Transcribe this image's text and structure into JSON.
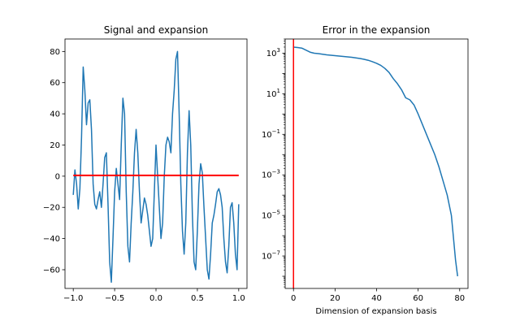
{
  "chart_data": [
    {
      "type": "line",
      "title": "Signal and expansion",
      "xlabel": "",
      "ylabel": "",
      "xlim": [
        -1.1,
        1.1
      ],
      "ylim": [
        -72,
        88
      ],
      "xticks": [
        -1.0,
        -0.5,
        0.0,
        0.5,
        1.0
      ],
      "xtick_labels": [
        "−1.0",
        "−0.5",
        "0.0",
        "0.5",
        "1.0"
      ],
      "yticks": [
        -60,
        -40,
        -20,
        0,
        20,
        40,
        60,
        80
      ],
      "ytick_labels": [
        "−60",
        "−40",
        "−20",
        "0",
        "20",
        "40",
        "60",
        "80"
      ],
      "grid": false,
      "series": [
        {
          "color": "#1f77b4",
          "x": [
            -1.0,
            -0.98,
            -0.96,
            -0.94,
            -0.92,
            -0.9,
            -0.88,
            -0.86,
            -0.84,
            -0.82,
            -0.8,
            -0.78,
            -0.76,
            -0.74,
            -0.72,
            -0.7,
            -0.68,
            -0.66,
            -0.64,
            -0.62,
            -0.6,
            -0.58,
            -0.56,
            -0.54,
            -0.52,
            -0.5,
            -0.48,
            -0.46,
            -0.44,
            -0.42,
            -0.4,
            -0.38,
            -0.36,
            -0.34,
            -0.32,
            -0.3,
            -0.28,
            -0.26,
            -0.24,
            -0.22,
            -0.2,
            -0.18,
            -0.16,
            -0.14,
            -0.12,
            -0.1,
            -0.08,
            -0.06,
            -0.04,
            -0.02,
            0.0,
            0.02,
            0.04,
            0.06,
            0.08,
            0.1,
            0.12,
            0.14,
            0.16,
            0.18,
            0.2,
            0.22,
            0.24,
            0.26,
            0.28,
            0.3,
            0.32,
            0.34,
            0.36,
            0.38,
            0.4,
            0.42,
            0.44,
            0.46,
            0.48,
            0.5,
            0.52,
            0.54,
            0.56,
            0.58,
            0.6,
            0.62,
            0.64,
            0.66,
            0.68,
            0.7,
            0.72,
            0.74,
            0.76,
            0.78,
            0.8,
            0.82,
            0.84,
            0.86,
            0.88,
            0.9,
            0.92,
            0.94,
            0.96,
            0.98,
            1.0
          ],
          "y": [
            -12,
            4,
            -5,
            -21,
            -8,
            25,
            70,
            55,
            33,
            47,
            49,
            30,
            -5,
            -18,
            -21,
            -15,
            -10,
            -20,
            -5,
            12,
            15,
            -18,
            -55,
            -68,
            -40,
            -10,
            5,
            -5,
            -15,
            20,
            50,
            40,
            -10,
            -45,
            -55,
            -30,
            -10,
            15,
            30,
            15,
            -10,
            -30,
            -22,
            -14,
            -18,
            -25,
            -35,
            -45,
            -40,
            -10,
            20,
            0,
            -20,
            -40,
            -30,
            0,
            20,
            25,
            22,
            15,
            40,
            55,
            75,
            80,
            40,
            -5,
            -35,
            -50,
            -30,
            15,
            42,
            20,
            -25,
            -55,
            -60,
            -35,
            -5,
            8,
            2,
            -20,
            -40,
            -60,
            -66,
            -50,
            -30,
            -25,
            -18,
            -10,
            -8,
            -12,
            -20,
            -40,
            -55,
            -62,
            -45,
            -20,
            -17,
            -30,
            -50,
            -60,
            -18
          ],
          "name": ""
        },
        {
          "color": "#ff0000",
          "x": [
            -1.0,
            1.0
          ],
          "y": [
            0.5,
            0.5
          ],
          "name": ""
        }
      ]
    },
    {
      "type": "line",
      "title": "Error in the expansion",
      "xlabel": "Dimension of expansion basis",
      "ylabel": "",
      "yscale": "log",
      "xlim": [
        -4,
        84
      ],
      "ylim_log10": [
        -8.6,
        3.7
      ],
      "xticks": [
        0,
        20,
        40,
        60,
        80
      ],
      "xtick_labels": [
        "0",
        "20",
        "40",
        "60",
        "80"
      ],
      "yticks_exp": [
        3,
        1,
        -1,
        -3,
        -5,
        -7
      ],
      "grid": false,
      "vline": {
        "x": 0,
        "color": "#ff0000"
      },
      "series": [
        {
          "color": "#1f77b4",
          "x": [
            0,
            2,
            4,
            6,
            8,
            10,
            12,
            14,
            16,
            18,
            20,
            22,
            24,
            26,
            28,
            30,
            32,
            34,
            36,
            38,
            40,
            42,
            44,
            46,
            48,
            50,
            52,
            54,
            56,
            58,
            60,
            62,
            64,
            66,
            68,
            70,
            72,
            74,
            76,
            78,
            79
          ],
          "log10_y": [
            3.3,
            3.28,
            3.25,
            3.15,
            3.05,
            3.0,
            2.98,
            2.95,
            2.92,
            2.9,
            2.88,
            2.86,
            2.84,
            2.82,
            2.8,
            2.77,
            2.74,
            2.7,
            2.65,
            2.58,
            2.5,
            2.4,
            2.25,
            2.05,
            1.75,
            1.5,
            1.2,
            0.8,
            0.7,
            0.45,
            0.0,
            -0.5,
            -1.0,
            -1.5,
            -2.0,
            -2.6,
            -3.3,
            -4.0,
            -5.0,
            -7.2,
            -8.0
          ],
          "name": ""
        }
      ]
    }
  ]
}
